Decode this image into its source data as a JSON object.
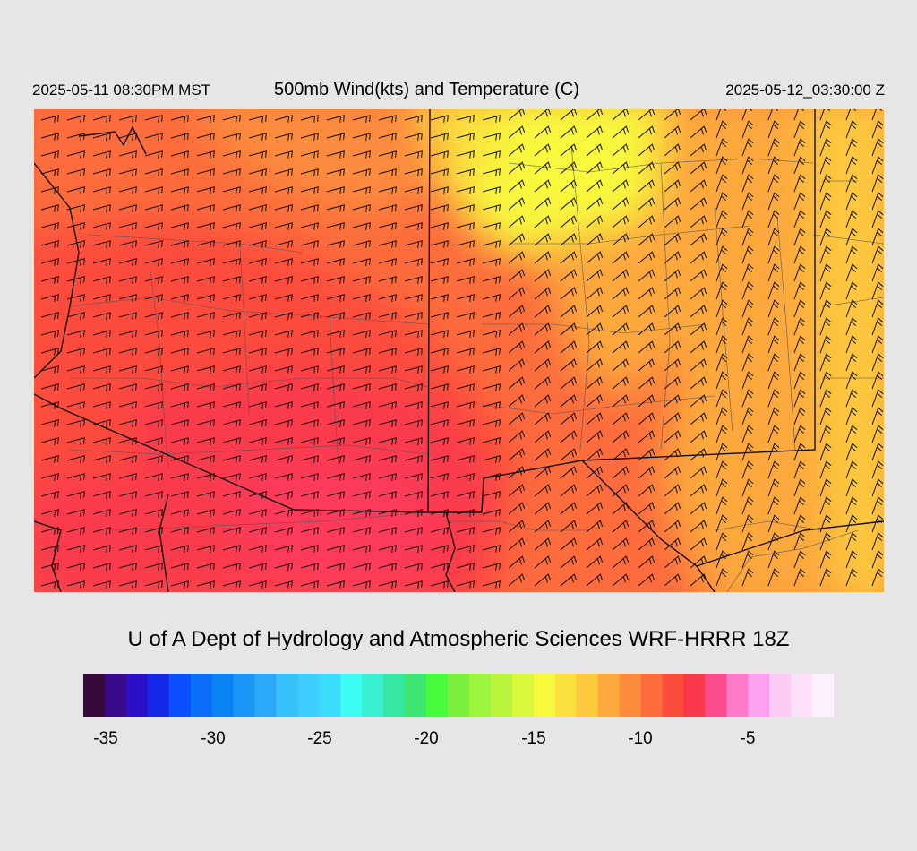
{
  "header": {
    "valid_local": "2025-05-11 08:30PM MST",
    "title": "500mb Wind(kts) and Temperature (C)",
    "valid_utc": "2025-05-12_03:30:00 Z"
  },
  "credit": "U of A Dept of Hydrology and Atmospheric Sciences WRF-HRRR 18Z",
  "colorbar": {
    "colors": [
      "#380a3c",
      "#3a0a8c",
      "#2a10c8",
      "#1428e8",
      "#0a50ff",
      "#0a6ef8",
      "#0a84f4",
      "#1898f4",
      "#2aa8f8",
      "#38c0fa",
      "#3ccefc",
      "#3cdcfc",
      "#3cfcf4",
      "#38f0d0",
      "#34e6a0",
      "#3ce670",
      "#48fa3c",
      "#7af03c",
      "#9cf43c",
      "#b8f43c",
      "#d8f83c",
      "#f8f83c",
      "#fae03c",
      "#fcc83c",
      "#fca83c",
      "#fc8c3c",
      "#fc6c3c",
      "#fc4c3c",
      "#fa3a4c",
      "#fc4c8c",
      "#fc78c8",
      "#fca0f0",
      "#fcc8f4",
      "#fce0fa",
      "#fcf0fc"
    ],
    "ticks": [
      "-35",
      "-30",
      "-25",
      "-20",
      "-15",
      "-10",
      "-5"
    ]
  },
  "map": {
    "temperature_field_colors": [
      "#fa3a4c",
      "#fc4c3c",
      "#fc6c3c",
      "#fc8c3c",
      "#fca83c",
      "#fcc83c",
      "#fae03c",
      "#f8f83c"
    ],
    "variables": [
      "wind barbs (kts)",
      "temperature (C)",
      "state and county boundaries"
    ]
  }
}
